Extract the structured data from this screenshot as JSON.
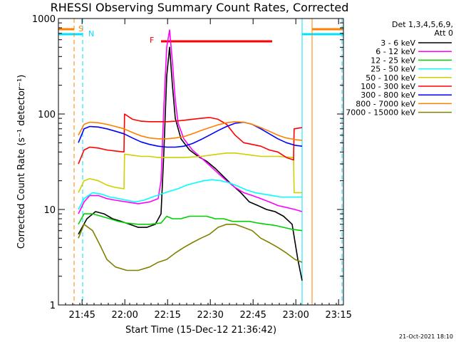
{
  "chart_data": {
    "type": "line",
    "title": "RHESSI Observing Summary Count Rates, Corrected",
    "xlabel": "Start Time (15-Dec-12 21:36:42)",
    "ylabel": "Corrected Count Rate (s⁻¹ detector⁻¹)",
    "y_scale": "log",
    "ylim": [
      1,
      1000
    ],
    "xlim_minutes_after_start": [
      0,
      100
    ],
    "x_tick_labels": [
      "21:45",
      "22:00",
      "22:15",
      "22:30",
      "22:45",
      "23:00",
      "23:15"
    ],
    "x_tick_minutes_after_start": [
      8.3,
      23.3,
      38.3,
      53.3,
      68.3,
      83.3,
      98.3
    ],
    "y_tick_labels": [
      "1",
      "10",
      "100",
      "1000"
    ],
    "legend_header": [
      "Det 1,3,4,5,6,9,",
      "Att 0"
    ],
    "legend_position": "right, outside plot",
    "grid": false,
    "flags": {
      "saa_label": "S",
      "night_label": "N",
      "flare_label": "F",
      "saa_minutes": [
        [
          0,
          5.5
        ],
        [
          89,
          100
        ]
      ],
      "night_minutes": [
        [
          0,
          8.5
        ],
        [
          85.5,
          100
        ]
      ],
      "flare_minutes": [
        36,
        75
      ],
      "flare_color": "#ff0000",
      "saa_color": "#ff8000",
      "night_color": "#00e0ff"
    },
    "series": [
      {
        "name": "3 - 6 keV",
        "color": "#000000",
        "points": [
          [
            7,
            5.5
          ],
          [
            10,
            8
          ],
          [
            13,
            9.5
          ],
          [
            16,
            9
          ],
          [
            19,
            8
          ],
          [
            22,
            7.5
          ],
          [
            25,
            7
          ],
          [
            28,
            6.5
          ],
          [
            31,
            6.5
          ],
          [
            34,
            7
          ],
          [
            36,
            9
          ],
          [
            37,
            40
          ],
          [
            38,
            250
          ],
          [
            39,
            500
          ],
          [
            40,
            200
          ],
          [
            41,
            90
          ],
          [
            43,
            55
          ],
          [
            46,
            42
          ],
          [
            49,
            36
          ],
          [
            52,
            32
          ],
          [
            55,
            27
          ],
          [
            58,
            22
          ],
          [
            61,
            18
          ],
          [
            64,
            15
          ],
          [
            67,
            12
          ],
          [
            70,
            11
          ],
          [
            73,
            10
          ],
          [
            76,
            9.5
          ],
          [
            79,
            8.5
          ],
          [
            82,
            7
          ],
          [
            84,
            3
          ],
          [
            85.5,
            1.8
          ]
        ]
      },
      {
        "name": "6 - 12 keV",
        "color": "#ff00ff",
        "points": [
          [
            7,
            9
          ],
          [
            9,
            12
          ],
          [
            11,
            14
          ],
          [
            14,
            14
          ],
          [
            17,
            13
          ],
          [
            20,
            12.5
          ],
          [
            24,
            12
          ],
          [
            28,
            11.5
          ],
          [
            32,
            12
          ],
          [
            35,
            13
          ],
          [
            36,
            20
          ],
          [
            37,
            120
          ],
          [
            38,
            500
          ],
          [
            39,
            760
          ],
          [
            40,
            350
          ],
          [
            41,
            140
          ],
          [
            42,
            80
          ],
          [
            44,
            55
          ],
          [
            47,
            42
          ],
          [
            50,
            35
          ],
          [
            53,
            29
          ],
          [
            56,
            24
          ],
          [
            59,
            20
          ],
          [
            62,
            17
          ],
          [
            65,
            15
          ],
          [
            68,
            14
          ],
          [
            71,
            13
          ],
          [
            74,
            12
          ],
          [
            77,
            11
          ],
          [
            80,
            10.5
          ],
          [
            83,
            10
          ],
          [
            85.5,
            9.5
          ]
        ]
      },
      {
        "name": "12 - 25 keV",
        "color": "#00d000",
        "points": [
          [
            7,
            7
          ],
          [
            9,
            9
          ],
          [
            12,
            9
          ],
          [
            15,
            8.5
          ],
          [
            18,
            8
          ],
          [
            21,
            7.5
          ],
          [
            24,
            7.2
          ],
          [
            28,
            7
          ],
          [
            32,
            7
          ],
          [
            36,
            7.2
          ],
          [
            38,
            8.5
          ],
          [
            40,
            8
          ],
          [
            43,
            8
          ],
          [
            46,
            8.5
          ],
          [
            49,
            8.5
          ],
          [
            52,
            8.5
          ],
          [
            55,
            8
          ],
          [
            58,
            8
          ],
          [
            61,
            7.5
          ],
          [
            64,
            7.5
          ],
          [
            67,
            7.5
          ],
          [
            70,
            7.2
          ],
          [
            73,
            7
          ],
          [
            76,
            6.8
          ],
          [
            79,
            6.5
          ],
          [
            82,
            6.2
          ],
          [
            85.5,
            6
          ]
        ]
      },
      {
        "name": "25 - 50 keV",
        "color": "#00ffff",
        "points": [
          [
            7,
            10
          ],
          [
            9,
            13
          ],
          [
            12,
            15
          ],
          [
            15,
            14.5
          ],
          [
            18,
            13.5
          ],
          [
            21,
            13
          ],
          [
            24,
            12.5
          ],
          [
            27,
            12
          ],
          [
            30,
            12.5
          ],
          [
            33,
            13.5
          ],
          [
            36,
            14.5
          ],
          [
            39,
            15.5
          ],
          [
            42,
            16.5
          ],
          [
            45,
            18
          ],
          [
            48,
            19
          ],
          [
            51,
            20
          ],
          [
            54,
            20.5
          ],
          [
            57,
            20
          ],
          [
            60,
            19
          ],
          [
            63,
            17.5
          ],
          [
            66,
            16
          ],
          [
            69,
            15
          ],
          [
            72,
            14.5
          ],
          [
            75,
            14
          ],
          [
            78,
            13.5
          ],
          [
            81,
            13.5
          ],
          [
            84,
            13.5
          ],
          [
            85.5,
            13.5
          ]
        ]
      },
      {
        "name": "50 - 100 keV",
        "color": "#d0d000",
        "points": [
          [
            7,
            15
          ],
          [
            9,
            20
          ],
          [
            11,
            21
          ],
          [
            14,
            20
          ],
          [
            17,
            18
          ],
          [
            20,
            17
          ],
          [
            23,
            16.5
          ],
          [
            23.2,
            38
          ],
          [
            26,
            37
          ],
          [
            29,
            36
          ],
          [
            32,
            36
          ],
          [
            35,
            35
          ],
          [
            38,
            35
          ],
          [
            41,
            35
          ],
          [
            44,
            35
          ],
          [
            47,
            35.5
          ],
          [
            50,
            36
          ],
          [
            53,
            37
          ],
          [
            56,
            38
          ],
          [
            59,
            39
          ],
          [
            62,
            39
          ],
          [
            65,
            38
          ],
          [
            68,
            37
          ],
          [
            71,
            36
          ],
          [
            74,
            36
          ],
          [
            77,
            36
          ],
          [
            80,
            35.5
          ],
          [
            82.5,
            35
          ],
          [
            82.7,
            15
          ],
          [
            85.5,
            15
          ]
        ]
      },
      {
        "name": "100 - 300 keV",
        "color": "#ff0000",
        "points": [
          [
            7,
            30
          ],
          [
            9,
            42
          ],
          [
            11,
            45
          ],
          [
            14,
            44
          ],
          [
            17,
            42
          ],
          [
            20,
            41
          ],
          [
            23,
            40
          ],
          [
            23.2,
            100
          ],
          [
            26,
            88
          ],
          [
            29,
            84
          ],
          [
            32,
            83
          ],
          [
            35,
            83
          ],
          [
            38,
            83
          ],
          [
            41,
            84
          ],
          [
            44,
            86
          ],
          [
            47,
            88
          ],
          [
            50,
            90
          ],
          [
            53,
            92
          ],
          [
            56,
            88
          ],
          [
            59,
            78
          ],
          [
            62,
            60
          ],
          [
            65,
            50
          ],
          [
            68,
            48
          ],
          [
            71,
            46
          ],
          [
            74,
            42
          ],
          [
            77,
            40
          ],
          [
            80,
            35
          ],
          [
            82.5,
            33
          ],
          [
            82.7,
            70
          ],
          [
            85.5,
            72
          ]
        ]
      },
      {
        "name": "300 - 800 keV",
        "color": "#0000ff",
        "points": [
          [
            7,
            50
          ],
          [
            9,
            70
          ],
          [
            11,
            74
          ],
          [
            14,
            73
          ],
          [
            17,
            70
          ],
          [
            20,
            66
          ],
          [
            23,
            62
          ],
          [
            26,
            56
          ],
          [
            29,
            51
          ],
          [
            32,
            48
          ],
          [
            35,
            46
          ],
          [
            38,
            45
          ],
          [
            41,
            45
          ],
          [
            44,
            46
          ],
          [
            47,
            49
          ],
          [
            50,
            54
          ],
          [
            53,
            60
          ],
          [
            56,
            67
          ],
          [
            59,
            74
          ],
          [
            62,
            80
          ],
          [
            65,
            82
          ],
          [
            68,
            78
          ],
          [
            71,
            70
          ],
          [
            74,
            62
          ],
          [
            77,
            55
          ],
          [
            80,
            50
          ],
          [
            83,
            47
          ],
          [
            85.5,
            46
          ]
        ]
      },
      {
        "name": "800 - 7000 keV",
        "color": "#ff8000",
        "points": [
          [
            7,
            60
          ],
          [
            9,
            78
          ],
          [
            11,
            82
          ],
          [
            14,
            81
          ],
          [
            17,
            78
          ],
          [
            20,
            74
          ],
          [
            23,
            70
          ],
          [
            26,
            64
          ],
          [
            29,
            59
          ],
          [
            32,
            56
          ],
          [
            35,
            55
          ],
          [
            38,
            55
          ],
          [
            41,
            56
          ],
          [
            44,
            58
          ],
          [
            47,
            62
          ],
          [
            50,
            67
          ],
          [
            53,
            72
          ],
          [
            56,
            77
          ],
          [
            59,
            81
          ],
          [
            62,
            83
          ],
          [
            65,
            82
          ],
          [
            68,
            78
          ],
          [
            71,
            72
          ],
          [
            74,
            66
          ],
          [
            77,
            60
          ],
          [
            80,
            56
          ],
          [
            83,
            54
          ],
          [
            85.5,
            53
          ]
        ]
      },
      {
        "name": "7000 - 15000 keV",
        "color": "#808000",
        "points": [
          [
            7,
            5
          ],
          [
            9,
            7
          ],
          [
            12,
            6
          ],
          [
            15,
            4
          ],
          [
            17,
            3
          ],
          [
            20,
            2.5
          ],
          [
            24,
            2.3
          ],
          [
            28,
            2.3
          ],
          [
            32,
            2.5
          ],
          [
            35,
            2.8
          ],
          [
            38,
            3
          ],
          [
            41,
            3.5
          ],
          [
            44,
            4
          ],
          [
            47,
            4.5
          ],
          [
            50,
            5
          ],
          [
            53,
            5.5
          ],
          [
            56,
            6.5
          ],
          [
            59,
            7
          ],
          [
            62,
            7
          ],
          [
            65,
            6.5
          ],
          [
            68,
            6
          ],
          [
            71,
            5
          ],
          [
            74,
            4.5
          ],
          [
            77,
            4
          ],
          [
            80,
            3.5
          ],
          [
            83,
            3
          ],
          [
            85.5,
            2.8
          ]
        ]
      }
    ]
  },
  "footer": {
    "stamp": "21-Oct-2021 18:10"
  }
}
